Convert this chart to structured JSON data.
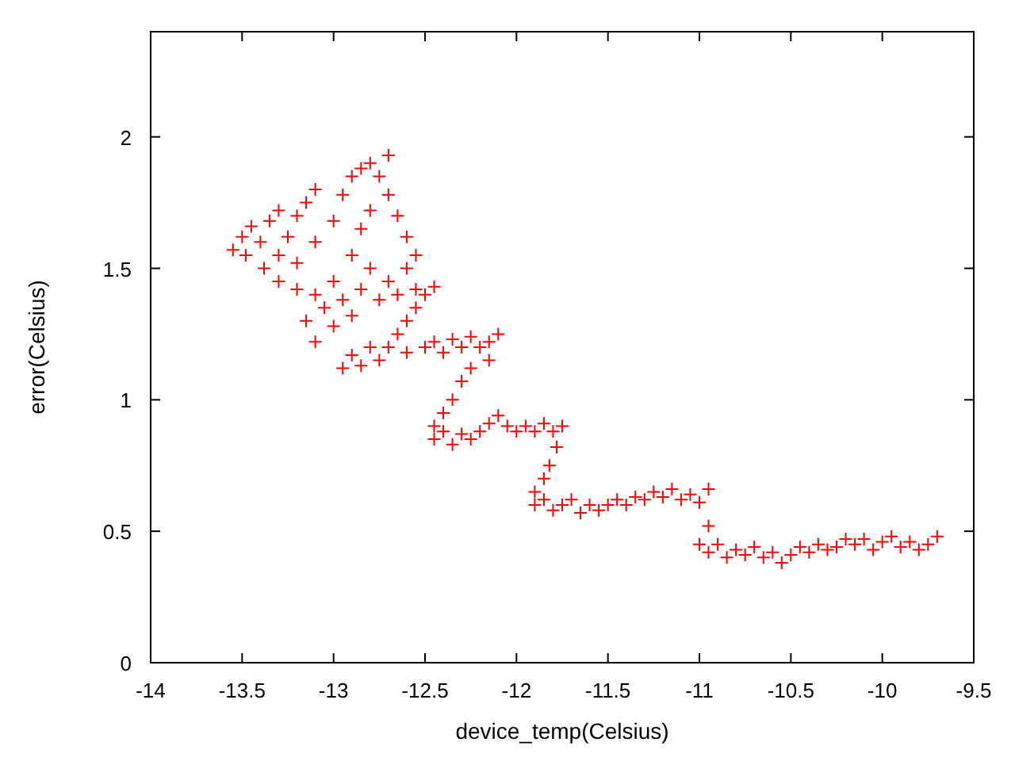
{
  "chart_data": {
    "type": "scatter",
    "xlabel": "device_temp(Celsius)",
    "ylabel": "error(Celsius)",
    "xlim": [
      -14,
      -9.5
    ],
    "ylim": [
      0,
      2.4
    ],
    "xticks": [
      -14,
      -13.5,
      -13,
      -12.5,
      -12,
      -11.5,
      -11,
      -10.5,
      -10,
      -9.5
    ],
    "yticks": [
      0,
      0.5,
      1,
      1.5,
      2
    ],
    "grid": false,
    "marker": "cross",
    "series": [
      {
        "color": "#ff0000",
        "x": [
          -13.55,
          -13.5,
          -13.45,
          -13.48,
          -13.4,
          -13.35,
          -13.3,
          -13.38,
          -13.3,
          -13.25,
          -13.2,
          -13.15,
          -13.1,
          -13.3,
          -13.2,
          -13.1,
          -13.0,
          -12.95,
          -12.9,
          -12.85,
          -12.8,
          -12.7,
          -12.75,
          -12.7,
          -12.65,
          -12.6,
          -12.55,
          -12.6,
          -12.7,
          -12.8,
          -12.9,
          -12.85,
          -12.8,
          -13.0,
          -13.1,
          -13.2,
          -13.15,
          -13.05,
          -12.95,
          -13.1,
          -13.0,
          -12.9,
          -12.85,
          -12.75,
          -12.65,
          -12.55,
          -12.95,
          -12.9,
          -12.85,
          -12.8,
          -12.75,
          -12.7,
          -12.65,
          -12.6,
          -12.55,
          -12.5,
          -12.45,
          -12.6,
          -12.5,
          -12.45,
          -12.4,
          -12.35,
          -12.3,
          -12.25,
          -12.2,
          -12.15,
          -12.1,
          -12.15,
          -12.25,
          -12.3,
          -12.35,
          -12.4,
          -12.45,
          -12.45,
          -12.4,
          -12.35,
          -12.3,
          -12.25,
          -12.2,
          -12.15,
          -12.1,
          -12.05,
          -12.0,
          -11.95,
          -11.9,
          -11.85,
          -11.8,
          -11.75,
          -11.78,
          -11.82,
          -11.85,
          -11.9,
          -11.9,
          -11.85,
          -11.8,
          -11.75,
          -11.7,
          -11.65,
          -11.6,
          -11.55,
          -11.5,
          -11.45,
          -11.4,
          -11.35,
          -11.3,
          -11.25,
          -11.2,
          -11.15,
          -11.1,
          -11.05,
          -11.0,
          -10.95,
          -10.95,
          -11.0,
          -10.95,
          -10.9,
          -10.85,
          -10.8,
          -10.75,
          -10.7,
          -10.65,
          -10.6,
          -10.55,
          -10.5,
          -10.45,
          -10.4,
          -10.35,
          -10.3,
          -10.25,
          -10.2,
          -10.15,
          -10.1,
          -10.05,
          -10.0,
          -9.95,
          -9.9,
          -9.85,
          -9.8,
          -9.75,
          -9.7
        ],
        "values": [
          1.57,
          1.62,
          1.66,
          1.55,
          1.6,
          1.68,
          1.72,
          1.5,
          1.55,
          1.62,
          1.7,
          1.75,
          1.8,
          1.45,
          1.52,
          1.6,
          1.68,
          1.78,
          1.85,
          1.88,
          1.9,
          1.93,
          1.85,
          1.78,
          1.7,
          1.62,
          1.55,
          1.5,
          1.45,
          1.5,
          1.55,
          1.65,
          1.72,
          1.45,
          1.4,
          1.42,
          1.3,
          1.35,
          1.38,
          1.22,
          1.28,
          1.32,
          1.42,
          1.38,
          1.4,
          1.42,
          1.12,
          1.17,
          1.13,
          1.2,
          1.15,
          1.2,
          1.25,
          1.3,
          1.35,
          1.4,
          1.43,
          1.18,
          1.2,
          1.22,
          1.18,
          1.23,
          1.2,
          1.24,
          1.2,
          1.22,
          1.25,
          1.15,
          1.12,
          1.07,
          1.0,
          0.95,
          0.9,
          0.85,
          0.88,
          0.83,
          0.87,
          0.85,
          0.88,
          0.91,
          0.94,
          0.9,
          0.88,
          0.9,
          0.88,
          0.91,
          0.88,
          0.9,
          0.82,
          0.75,
          0.7,
          0.65,
          0.6,
          0.62,
          0.58,
          0.6,
          0.62,
          0.57,
          0.6,
          0.58,
          0.6,
          0.62,
          0.6,
          0.63,
          0.62,
          0.65,
          0.63,
          0.66,
          0.62,
          0.64,
          0.61,
          0.66,
          0.52,
          0.45,
          0.42,
          0.45,
          0.4,
          0.43,
          0.41,
          0.44,
          0.4,
          0.42,
          0.38,
          0.41,
          0.44,
          0.42,
          0.45,
          0.43,
          0.44,
          0.47,
          0.45,
          0.47,
          0.43,
          0.46,
          0.48,
          0.44,
          0.46,
          0.43,
          0.45,
          0.48
        ]
      }
    ]
  }
}
